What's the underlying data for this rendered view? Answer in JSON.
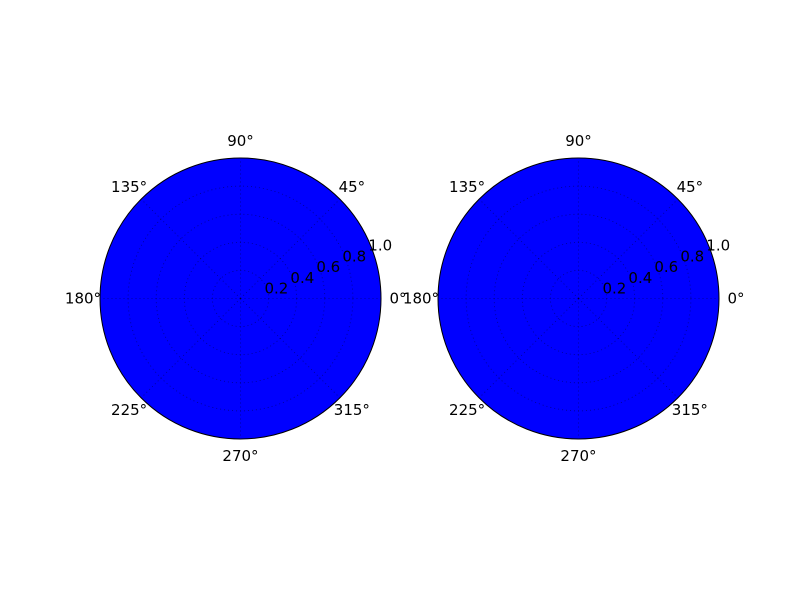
{
  "chart_data": [
    {
      "type": "polar",
      "fill_color": "#0000ff",
      "edge_color": "#000000",
      "grid": true,
      "grid_style": "dotted",
      "rlim": [
        0,
        1.0
      ],
      "r_ticks": [
        0.2,
        0.4,
        0.6,
        0.8,
        1.0
      ],
      "r_tick_labels": [
        "0.2",
        "0.4",
        "0.6",
        "0.8",
        "1.0"
      ],
      "theta_ticks_deg": [
        0,
        45,
        90,
        135,
        180,
        225,
        270,
        315
      ],
      "theta_tick_labels": [
        "0°",
        "45°",
        "90°",
        "135°",
        "180°",
        "225°",
        "270°",
        "315°"
      ],
      "fill": {
        "r_min": 0,
        "r_max": 1.0,
        "theta_min_deg": 0,
        "theta_max_deg": 360
      }
    },
    {
      "type": "polar",
      "fill_color": "#0000ff",
      "edge_color": "#000000",
      "grid": true,
      "grid_style": "dotted",
      "rlim": [
        0,
        1.0
      ],
      "r_ticks": [
        0.2,
        0.4,
        0.6,
        0.8,
        1.0
      ],
      "r_tick_labels": [
        "0.2",
        "0.4",
        "0.6",
        "0.8",
        "1.0"
      ],
      "theta_ticks_deg": [
        0,
        45,
        90,
        135,
        180,
        225,
        270,
        315
      ],
      "theta_tick_labels": [
        "0°",
        "45°",
        "90°",
        "135°",
        "180°",
        "225°",
        "270°",
        "315°"
      ],
      "fill": {
        "r_min": 0,
        "r_max": 1.0,
        "theta_min_deg": 0,
        "theta_max_deg": 360
      }
    }
  ]
}
